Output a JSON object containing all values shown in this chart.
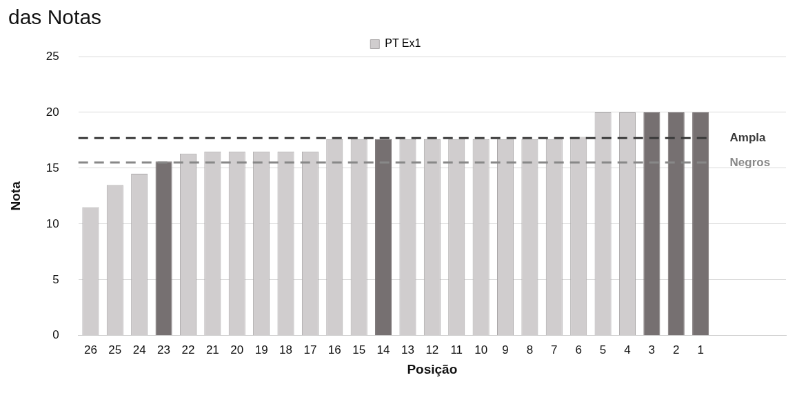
{
  "chart_data": {
    "type": "bar",
    "title": "das Notas",
    "xlabel": "Posição",
    "ylabel": "Nota",
    "categories": [
      "26",
      "25",
      "24",
      "23",
      "22",
      "21",
      "20",
      "19",
      "18",
      "17",
      "16",
      "15",
      "14",
      "13",
      "12",
      "11",
      "10",
      "9",
      "8",
      "7",
      "6",
      "5",
      "4",
      "3",
      "2",
      "1",
      null,
      null,
      null
    ],
    "series": [
      {
        "name": "PT Ex1",
        "color": "#d0cdce",
        "colors": [
          "#d0cdce",
          "#d0cdce",
          "#d0cdce",
          "#767071",
          "#d0cdce",
          "#d0cdce",
          "#d0cdce",
          "#d0cdce",
          "#d0cdce",
          "#d0cdce",
          "#d0cdce",
          "#d0cdce",
          "#767071",
          "#d0cdce",
          "#d0cdce",
          "#d0cdce",
          "#d0cdce",
          "#d0cdce",
          "#d0cdce",
          "#d0cdce",
          "#d0cdce",
          "#d0cdce",
          "#d0cdce",
          "#767071",
          "#767071",
          "#767071",
          null,
          null,
          null
        ],
        "values": [
          11.5,
          13.5,
          14.5,
          15.6,
          16.3,
          16.5,
          16.5,
          16.5,
          16.5,
          16.5,
          17.6,
          17.6,
          17.6,
          17.6,
          17.6,
          17.6,
          17.6,
          17.6,
          17.6,
          17.6,
          17.8,
          20,
          20,
          20,
          20,
          20,
          null,
          null,
          null
        ]
      }
    ],
    "ref_lines": [
      {
        "axis": "y",
        "value": 17.7,
        "label": "Ampla",
        "color": "#3a3a3a",
        "line_style": "dashed"
      },
      {
        "axis": "y",
        "value": 15.5,
        "label": "Negros",
        "color": "#888888",
        "line_style": "dashed"
      }
    ],
    "ylim": [
      0,
      25
    ],
    "yticks": [
      0,
      5,
      10,
      15,
      20,
      25
    ],
    "grid": "y",
    "legend": "top"
  }
}
